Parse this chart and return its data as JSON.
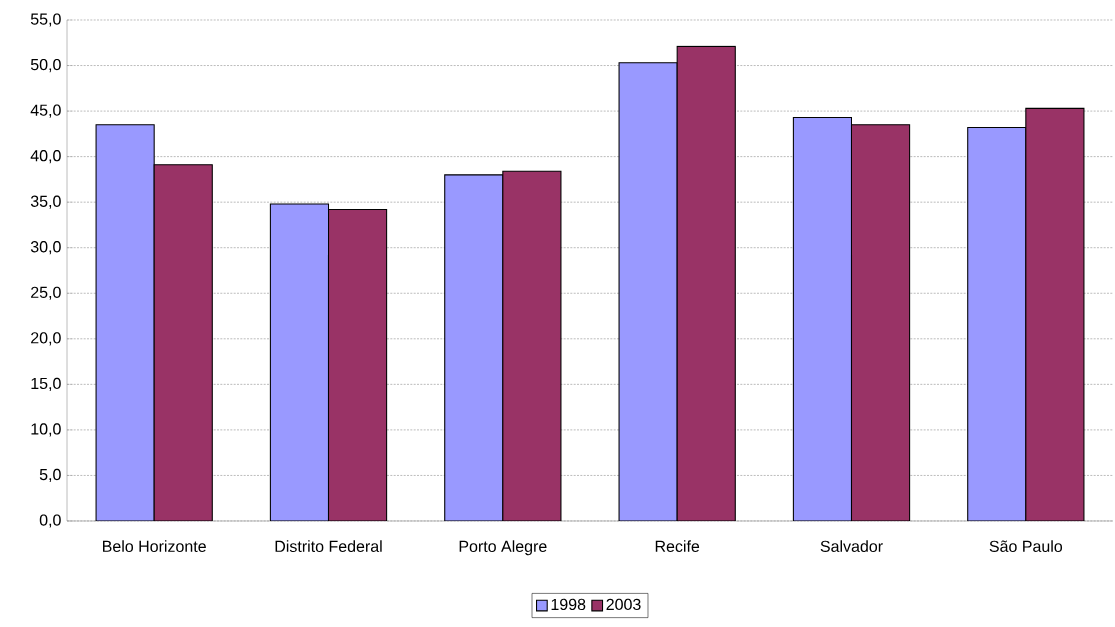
{
  "chart_data": {
    "type": "bar",
    "categories": [
      "Belo Horizonte",
      "Distrito Federal",
      "Porto Alegre",
      "Recife",
      "Salvador",
      "São Paulo"
    ],
    "series": [
      {
        "name": "1998",
        "color": "#9999ff",
        "values": [
          43.5,
          34.8,
          38.0,
          50.3,
          44.3,
          43.2
        ]
      },
      {
        "name": "2003",
        "color": "#993366",
        "values": [
          39.1,
          34.2,
          38.4,
          52.1,
          43.5,
          45.3
        ]
      }
    ],
    "ylim": [
      0,
      55
    ],
    "yticks": [
      {
        "value": 0,
        "label": "0,0"
      },
      {
        "value": 5,
        "label": "5,0"
      },
      {
        "value": 10,
        "label": "10,0"
      },
      {
        "value": 15,
        "label": "15,0"
      },
      {
        "value": 20,
        "label": "20,0"
      },
      {
        "value": 25,
        "label": "25,0"
      },
      {
        "value": 30,
        "label": "30,0"
      },
      {
        "value": 35,
        "label": "35,0"
      },
      {
        "value": 40,
        "label": "40,0"
      },
      {
        "value": 45,
        "label": "45,0"
      },
      {
        "value": 50,
        "label": "50,0"
      },
      {
        "value": 55,
        "label": "55,0"
      }
    ],
    "grid": "y",
    "legend": "bottom"
  }
}
